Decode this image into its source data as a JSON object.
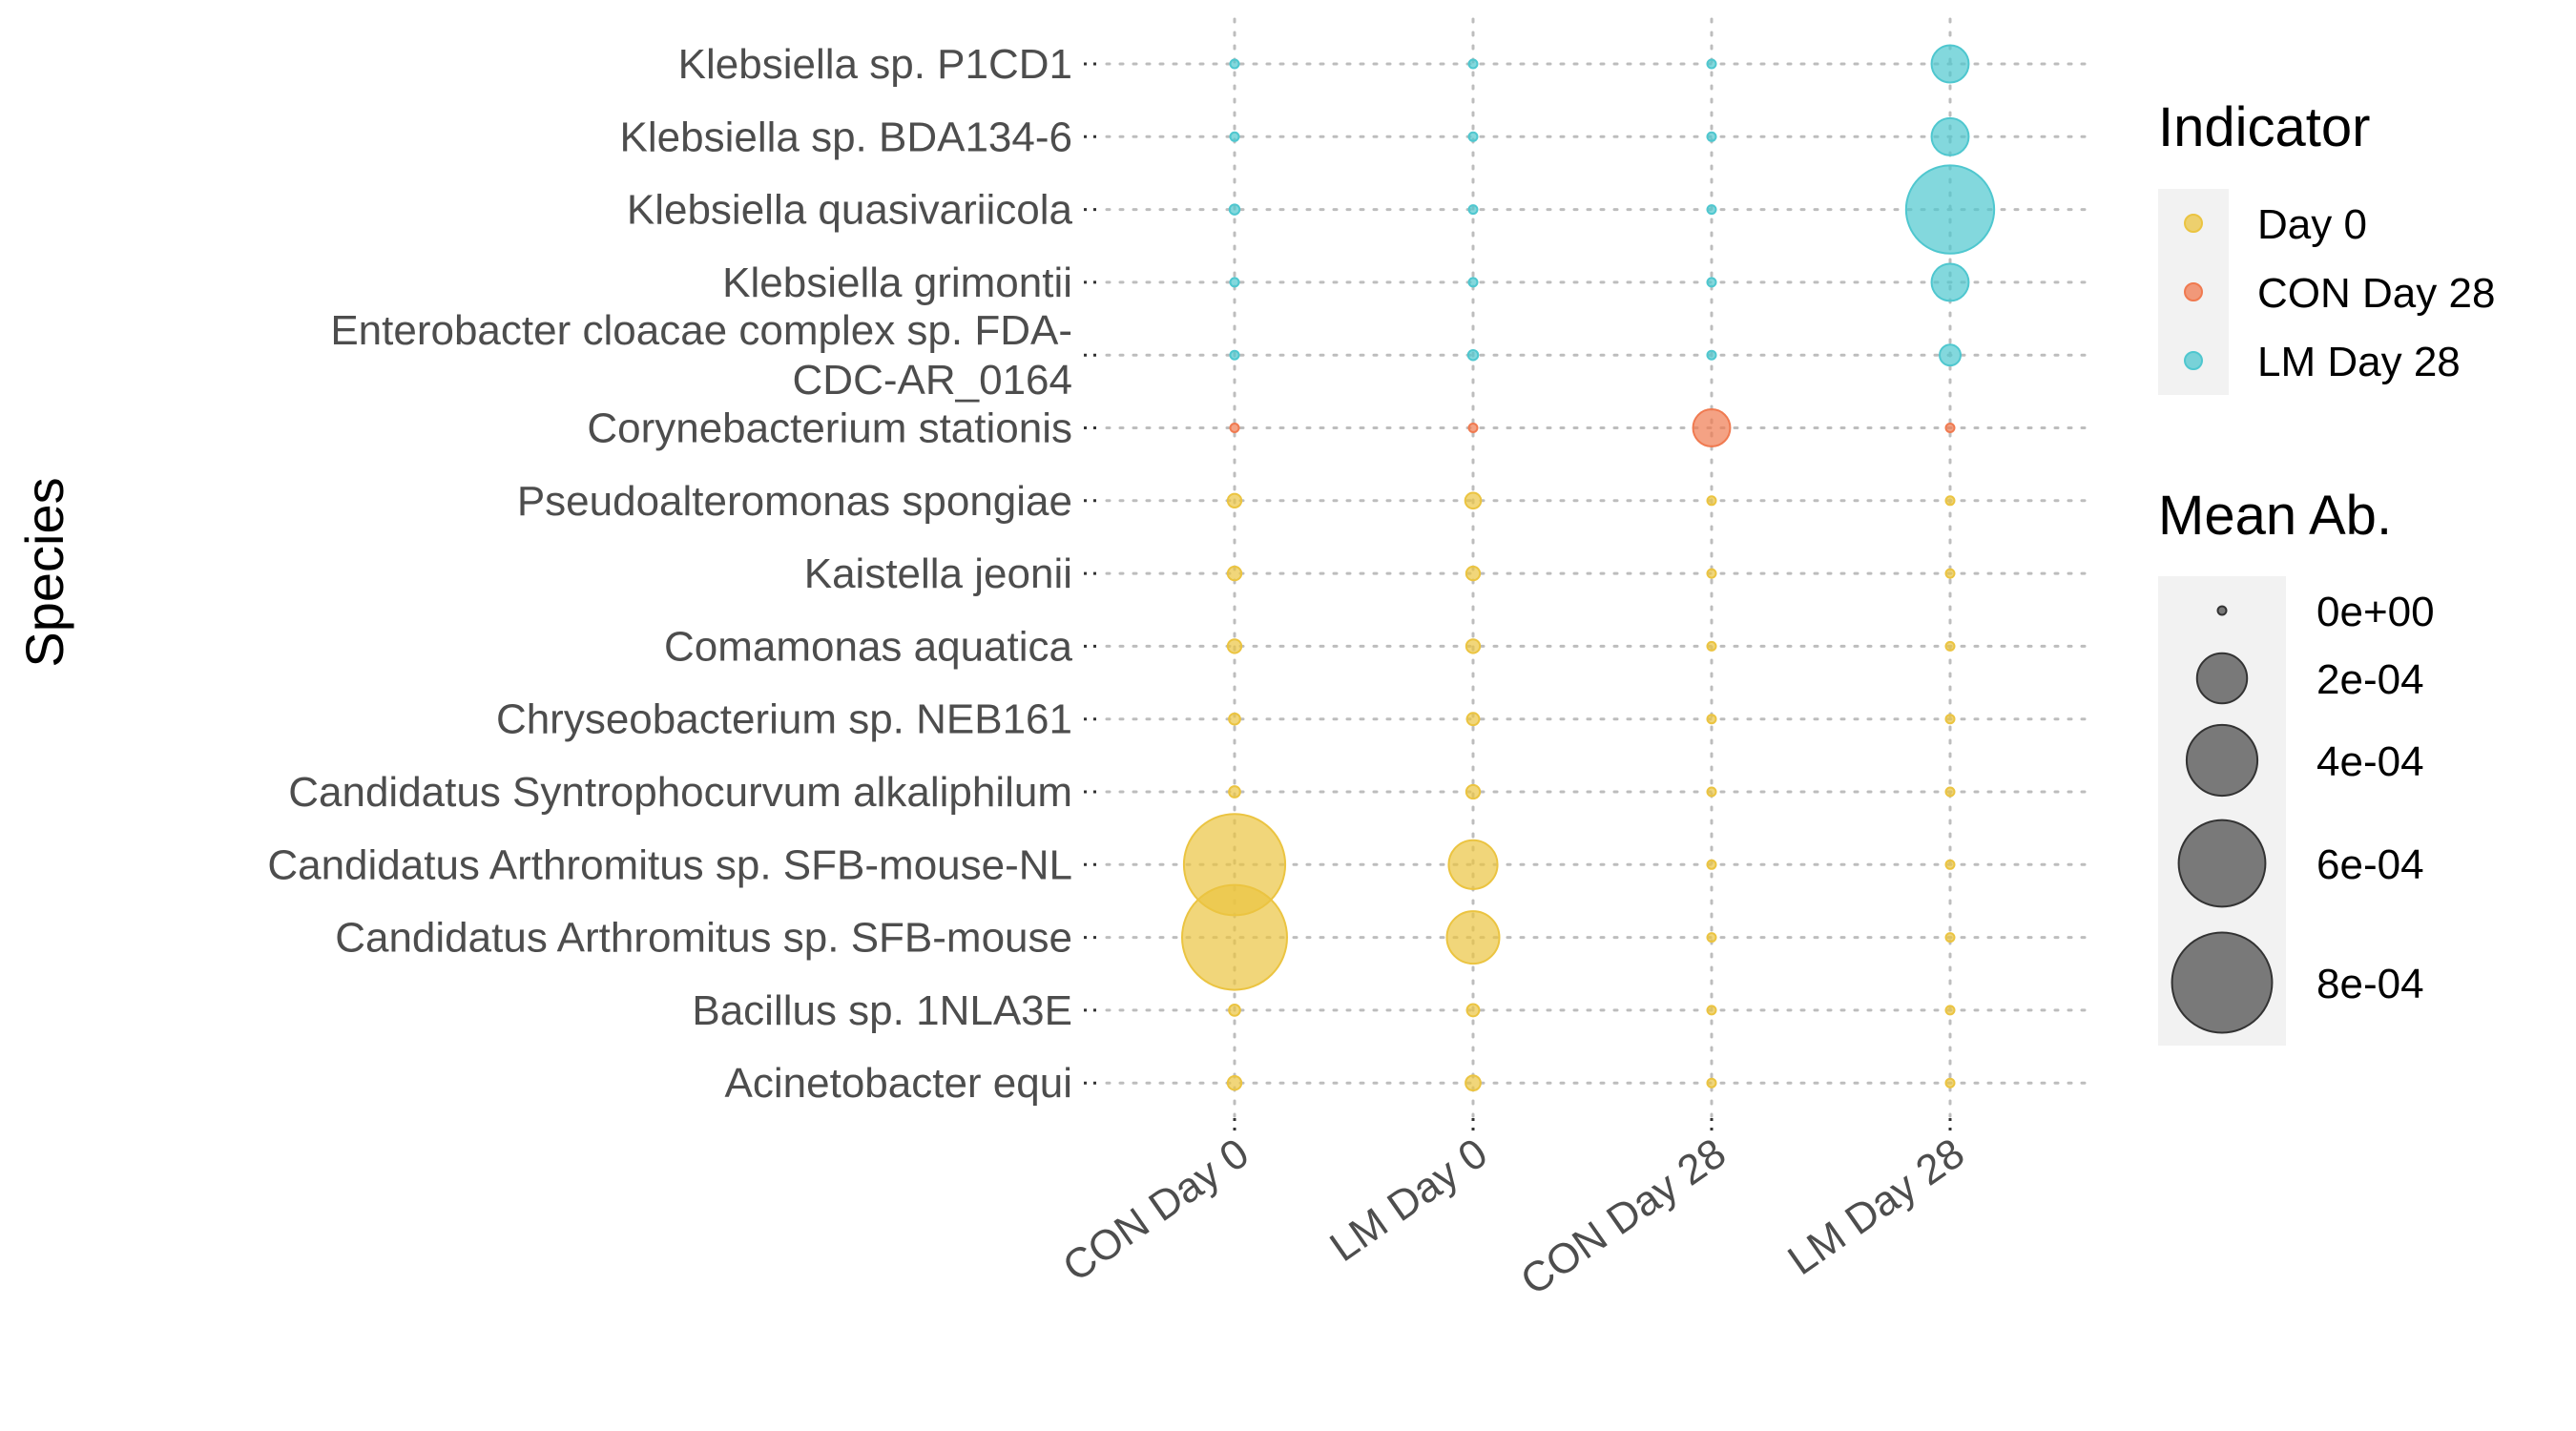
{
  "chart_data": {
    "type": "scatter",
    "subtype": "bubble",
    "xlabel": "",
    "ylabel": "Species",
    "x_categories": [
      "CON Day 0",
      "LM Day 0",
      "CON Day 28",
      "LM Day 28"
    ],
    "y_categories": [
      "Klebsiella sp. P1CD1",
      "Klebsiella sp. BDA134-6",
      "Klebsiella quasivariicola",
      "Klebsiella grimontii",
      "Enterobacter cloacae complex sp. FDA-CDC-AR_0164",
      "Corynebacterium stationis",
      "Pseudoalteromonas spongiae",
      "Kaistella jeonii",
      "Comamonas aquatica",
      "Chryseobacterium sp. NEB161",
      "Candidatus Syntrophocurvum alkaliphilum",
      "Candidatus Arthromitus sp. SFB-mouse-NL",
      "Candidatus Arthromitus sp. SFB-mouse",
      "Bacillus sp. 1NLA3E",
      "Acinetobacter equi"
    ],
    "y_label_lines": [
      [
        "Klebsiella sp. P1CD1"
      ],
      [
        "Klebsiella sp. BDA134-6"
      ],
      [
        "Klebsiella quasivariicola"
      ],
      [
        "Klebsiella grimontii"
      ],
      [
        "Enterobacter cloacae complex sp. FDA-",
        "CDC-AR_0164"
      ],
      [
        "Corynebacterium stationis"
      ],
      [
        "Pseudoalteromonas spongiae"
      ],
      [
        "Kaistella jeonii"
      ],
      [
        "Comamonas aquatica"
      ],
      [
        "Chryseobacterium sp. NEB161"
      ],
      [
        "Candidatus Syntrophocurvum alkaliphilum"
      ],
      [
        "Candidatus Arthromitus sp. SFB-mouse-NL"
      ],
      [
        "Candidatus Arthromitus sp. SFB-mouse"
      ],
      [
        "Bacillus sp. 1NLA3E"
      ],
      [
        "Acinetobacter equi"
      ]
    ],
    "indicators": [
      "LM Day 28",
      "LM Day 28",
      "LM Day 28",
      "LM Day 28",
      "LM Day 28",
      "CON Day 28",
      "Day 0",
      "Day 0",
      "Day 0",
      "Day 0",
      "Day 0",
      "Day 0",
      "Day 0",
      "Day 0",
      "Day 0"
    ],
    "mean_abundance": [
      [
        3e-06,
        2e-06,
        1e-06,
        0.00011
      ],
      [
        2e-06,
        2e-06,
        3e-06,
        0.00011
      ],
      [
        8e-06,
        5e-06,
        1e-06,
        0.00062
      ],
      [
        4e-06,
        4e-06,
        1e-06,
        0.00011
      ],
      [
        3e-06,
        8e-06,
        5e-07,
        3.5e-05
      ],
      [
        4e-06,
        4e-06,
        0.00011,
        2e-06
      ],
      [
        1.5e-05,
        2e-05,
        5e-07,
        5e-07
      ],
      [
        1.5e-05,
        1.5e-05,
        1e-06,
        1e-06
      ],
      [
        1.5e-05,
        1.5e-05,
        1e-06,
        1e-06
      ],
      [
        1e-05,
        1.2e-05,
        1e-06,
        1e-06
      ],
      [
        1e-05,
        1.5e-05,
        1e-06,
        1e-06
      ],
      [
        0.00082,
        0.00019,
        5e-07,
        5e-07
      ],
      [
        0.00088,
        0.00022,
        5e-07,
        5e-07
      ],
      [
        1e-05,
        1.2e-05,
        1e-06,
        1e-06
      ],
      [
        1.5e-05,
        1.8e-05,
        5e-07,
        5e-07
      ]
    ],
    "legend_indicator": {
      "title": "Indicator",
      "entries": [
        {
          "label": "Day 0",
          "color": "#EBC441"
        },
        {
          "label": "CON Day 28",
          "color": "#F07A50"
        },
        {
          "label": "LM Day 28",
          "color": "#4FC7CF"
        }
      ]
    },
    "legend_size": {
      "title": "Mean Ab.",
      "breaks": [
        0,
        0.0002,
        0.0004,
        0.0006,
        0.0008
      ],
      "labels": [
        "0e+00",
        "2e-04",
        "4e-04",
        "6e-04",
        "8e-04"
      ],
      "color": "#000000"
    },
    "grid": "dotted",
    "legend_position": "right"
  }
}
